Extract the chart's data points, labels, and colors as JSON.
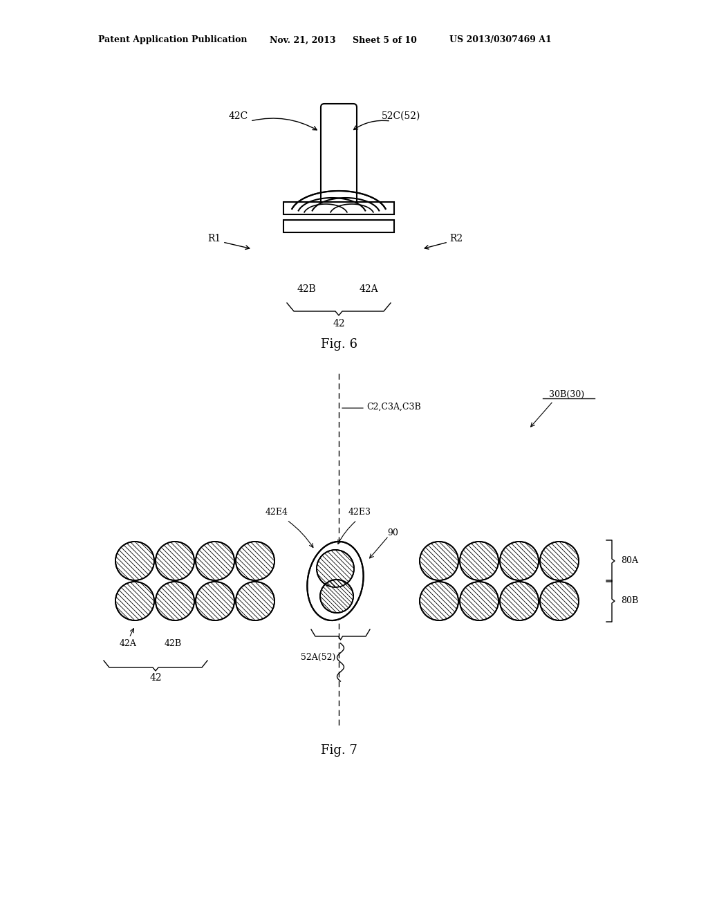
{
  "background_color": "#ffffff",
  "header_line1": "Patent Application Publication",
  "header_line2": "Nov. 21, 2013",
  "header_line3": "Sheet 5 of 10",
  "header_line4": "US 2013/0307469 A1",
  "fig6_caption": "Fig. 6",
  "fig7_caption": "Fig. 7"
}
